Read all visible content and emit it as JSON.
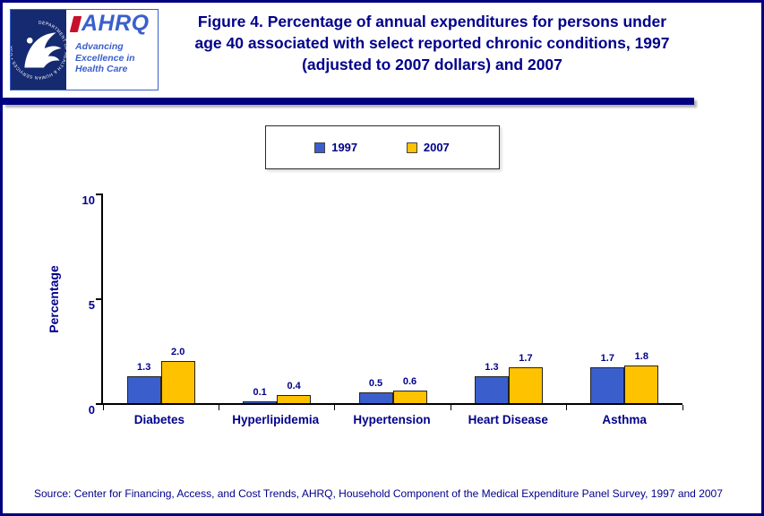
{
  "logo": {
    "hhs_seal_icon": "hhs-eagle-seal-icon",
    "seal_text": "DEPARTMENT OF HEALTH & HUMAN SERVICES • USA",
    "ahrq_text": "AHRQ",
    "tagline": [
      "Advancing",
      "Excellence in",
      "Health Care"
    ]
  },
  "chart_data": {
    "type": "bar",
    "title": "Figure 4. Percentage of annual expenditures for persons under age 40 associated with select reported chronic conditions, 1997 (adjusted to 2007 dollars) and 2007",
    "categories": [
      "Diabetes",
      "Hyperlipidemia",
      "Hypertension",
      "Heart Disease",
      "Asthma"
    ],
    "series": [
      {
        "name": "1997",
        "color": "#3A5FCD",
        "values": [
          1.3,
          0.1,
          0.5,
          1.3,
          1.7
        ]
      },
      {
        "name": "2007",
        "color": "#FFC200",
        "values": [
          2.0,
          0.4,
          0.6,
          1.7,
          1.8
        ]
      }
    ],
    "xlabel": "",
    "ylabel": "Percentage",
    "ylim": [
      0,
      10
    ],
    "yticks": [
      0,
      5,
      10
    ],
    "grid": false,
    "legend_position": "top",
    "value_labels": true
  },
  "source": "Source: Center for Financing, Access, and Cost Trends, AHRQ, Household Component of the Medical Expenditure Panel Survey, 1997 and 2007"
}
